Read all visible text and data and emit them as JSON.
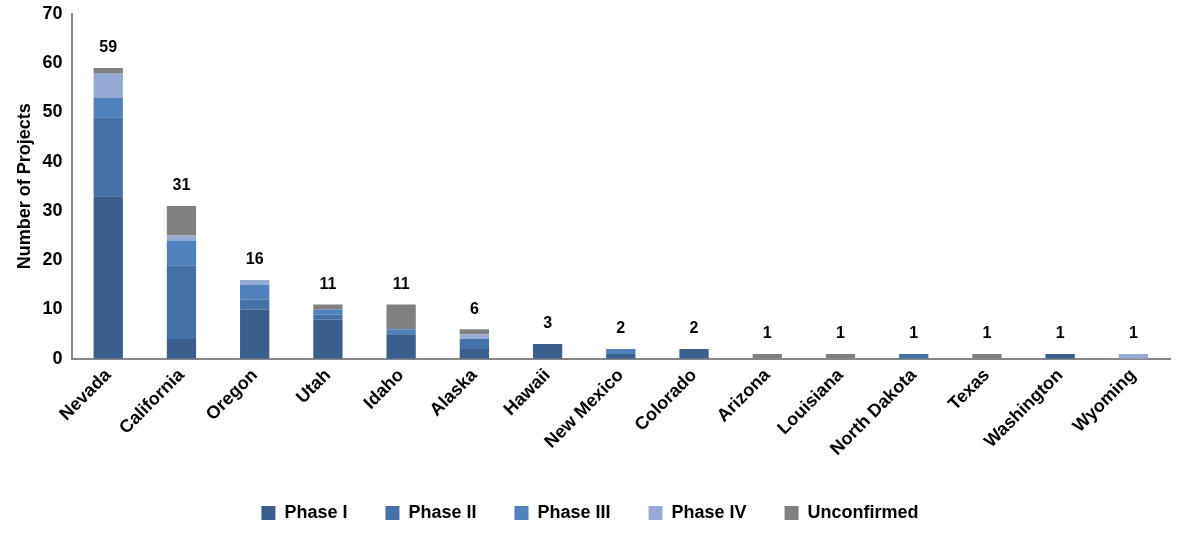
{
  "chart_data": {
    "type": "bar",
    "stacked": true,
    "ylabel": "Number of Projects",
    "categories": [
      "Nevada",
      "California",
      "Oregon",
      "Utah",
      "Idaho",
      "Alaska",
      "Hawaii",
      "New Mexico",
      "Colorado",
      "Arizona",
      "Louisiana",
      "North Dakota",
      "Texas",
      "Washington",
      "Wyoming"
    ],
    "series": [
      {
        "name": "Phase I",
        "color": "#3a5f8f",
        "values": [
          33,
          4,
          10,
          8,
          5,
          2,
          3,
          1,
          2,
          0,
          0,
          0,
          0,
          1,
          0
        ]
      },
      {
        "name": "Phase II",
        "color": "#4472a8",
        "values": [
          16,
          15,
          2,
          1,
          0,
          2,
          0,
          0,
          0,
          0,
          0,
          1,
          0,
          0,
          0
        ]
      },
      {
        "name": "Phase III",
        "color": "#4f81bd",
        "values": [
          4,
          5,
          3,
          1,
          1,
          0,
          0,
          1,
          0,
          0,
          0,
          0,
          0,
          0,
          0
        ]
      },
      {
        "name": "Phase IV",
        "color": "#95abd5",
        "values": [
          5,
          1,
          1,
          0,
          0,
          1,
          0,
          0,
          0,
          0,
          0,
          0,
          0,
          0,
          1
        ]
      },
      {
        "name": "Unconfirmed",
        "color": "#808080",
        "values": [
          1,
          6,
          0,
          1,
          5,
          1,
          0,
          0,
          0,
          1,
          1,
          0,
          1,
          0,
          0
        ]
      }
    ],
    "totals": [
      "59",
      "31",
      "16",
      "11",
      "11",
      "6",
      "3",
      "2",
      "2",
      "1",
      "1",
      "1",
      "1",
      "1",
      "1"
    ],
    "ylim": [
      0,
      70
    ],
    "yticks": [
      0,
      10,
      20,
      30,
      40,
      50,
      60,
      70
    ],
    "grid": false,
    "legend": "bottom"
  }
}
